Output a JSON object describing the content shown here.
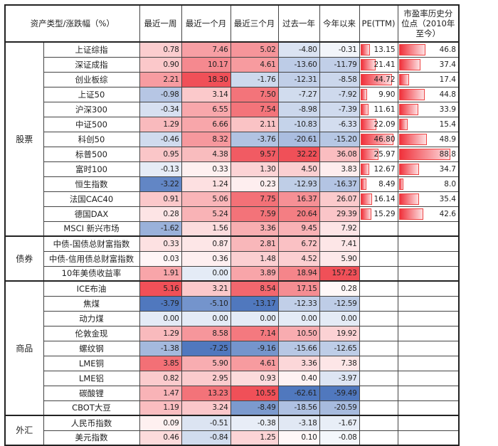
{
  "chart_data": {
    "type": "heatmap",
    "title": "",
    "header": [
      "资产类型/涨跌幅（%）",
      "最近一周",
      "最近一个月",
      "最近三个月",
      "过去一年",
      "今年以来",
      "PE(TTM)",
      "市盈率历史分位点（2010年至今）"
    ],
    "colors": {
      "positive": "#f0303a",
      "negative": "#3f6fb8",
      "neutral": "#ffffff"
    },
    "groups": [
      {
        "category": "股票",
        "rows": [
          {
            "name": "上证综指",
            "values": [
              0.78,
              7.46,
              5.02,
              -4.8,
              -0.31
            ],
            "pe": 13.15,
            "pct": 46.8
          },
          {
            "name": "深证成指",
            "values": [
              0.9,
              10.17,
              4.61,
              -13.6,
              -11.79
            ],
            "pe": 21.41,
            "pct": 37.4
          },
          {
            "name": "创业板综",
            "values": [
              2.21,
              18.3,
              -1.76,
              -12.31,
              -8.58
            ],
            "pe": 44.72,
            "pct": 17.4
          },
          {
            "name": "上证50",
            "values": [
              -0.98,
              3.14,
              7.5,
              -7.27,
              -7.92
            ],
            "pe": 9.9,
            "pct": 44.8
          },
          {
            "name": "沪深300",
            "values": [
              -0.34,
              6.55,
              7.54,
              -8.98,
              -7.39
            ],
            "pe": 11.61,
            "pct": 33.9
          },
          {
            "name": "中证500",
            "values": [
              1.29,
              6.66,
              2.11,
              -10.83,
              -6.33
            ],
            "pe": 22.09,
            "pct": 15.4
          },
          {
            "name": "科创50",
            "values": [
              -0.46,
              8.32,
              -3.76,
              -20.61,
              -15.2
            ],
            "pe": 46.8,
            "pct": 48.9
          },
          {
            "name": "标普500",
            "values": [
              0.95,
              4.38,
              9.57,
              32.22,
              36.08
            ],
            "pe": 25.97,
            "pct": 88.8
          },
          {
            "name": "富时100",
            "values": [
              -0.13,
              0.33,
              1.3,
              4.5,
              3.83
            ],
            "pe": 12.67,
            "pct": 34.7
          },
          {
            "name": "恒生指数",
            "values": [
              -3.22,
              1.24,
              0.23,
              -12.93,
              -16.37
            ],
            "pe": 8.49,
            "pct": 8.0
          },
          {
            "name": "法国CAC40",
            "values": [
              0.91,
              5.06,
              7.75,
              16.37,
              26.07
            ],
            "pe": 16.14,
            "pct": 35.4
          },
          {
            "name": "德国DAX",
            "values": [
              0.28,
              5.24,
              7.59,
              20.64,
              29.39
            ],
            "pe": 15.29,
            "pct": 42.6
          },
          {
            "name": "MSCI 新兴市场",
            "values": [
              -1.62,
              1.56,
              3.36,
              9.45,
              7.92
            ],
            "pe": null,
            "pct": null
          }
        ]
      },
      {
        "category": "债券",
        "rows": [
          {
            "name": "中债-国债总财富指数",
            "values": [
              0.33,
              0.87,
              2.81,
              6.72,
              7.41
            ],
            "pe": null,
            "pct": null
          },
          {
            "name": "中债-信用债总财富指数",
            "values": [
              0.03,
              0.36,
              1.48,
              4.52,
              5.9
            ],
            "pe": null,
            "pct": null
          },
          {
            "name": "10年美债收益率",
            "values": [
              1.91,
              0.0,
              3.89,
              18.94,
              157.23
            ],
            "pe": null,
            "pct": null
          }
        ]
      },
      {
        "category": "商品",
        "rows": [
          {
            "name": "ICE布油",
            "values": [
              5.16,
              3.21,
              8.54,
              17.15,
              0.28
            ],
            "pe": null,
            "pct": null
          },
          {
            "name": "焦煤",
            "values": [
              -3.79,
              -5.1,
              -13.17,
              -12.33,
              -12.59
            ],
            "pe": null,
            "pct": null
          },
          {
            "name": "动力煤",
            "values": [
              0.0,
              0.0,
              0.0,
              0.0,
              0.0
            ],
            "pe": null,
            "pct": null
          },
          {
            "name": "伦敦金现",
            "values": [
              1.29,
              8.58,
              7.14,
              10.5,
              19.92
            ],
            "pe": null,
            "pct": null
          },
          {
            "name": "螺纹钢",
            "values": [
              -1.38,
              -7.25,
              -9.16,
              -15.66,
              -12.65
            ],
            "pe": null,
            "pct": null
          },
          {
            "name": "LME铜",
            "values": [
              3.85,
              5.9,
              4.61,
              3.36,
              7.38
            ],
            "pe": null,
            "pct": null
          },
          {
            "name": "LME铝",
            "values": [
              0.82,
              2.95,
              0.93,
              0.4,
              -3.97
            ],
            "pe": null,
            "pct": null
          },
          {
            "name": "碳酸锂",
            "values": [
              1.47,
              13.23,
              10.55,
              -62.61,
              -59.49
            ],
            "pe": null,
            "pct": null
          },
          {
            "name": "CBOT大豆",
            "values": [
              1.19,
              3.24,
              -8.49,
              -18.56,
              -20.59
            ],
            "pe": null,
            "pct": null
          }
        ]
      },
      {
        "category": "外汇",
        "rows": [
          {
            "name": "人民币指数",
            "values": [
              0.09,
              -0.51,
              -0.38,
              -3.18,
              -1.67
            ],
            "pe": null,
            "pct": null
          },
          {
            "name": "美元指数",
            "values": [
              0.46,
              -0.84,
              1.25,
              0.1,
              -0.08
            ],
            "pe": null,
            "pct": null
          }
        ]
      }
    ]
  }
}
